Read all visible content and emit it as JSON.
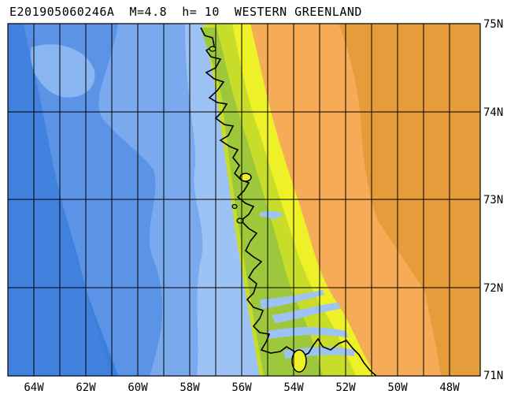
{
  "map": {
    "title": "E201905060246A  M=4.8  h= 10  WESTERN GREENLAND",
    "lon_labels": [
      "64W",
      "62W",
      "60W",
      "58W",
      "56W",
      "54W",
      "52W",
      "50W",
      "48W"
    ],
    "lat_labels": [
      "75N",
      "74N",
      "73N",
      "72N",
      "71N"
    ],
    "extent": {
      "lon_min": -65.3,
      "lon_max": -47.2,
      "lat_min": 71,
      "lat_max": 75
    },
    "colors": {
      "deep_ocean": "#3a7fdc",
      "ocean": "#5b93e6",
      "shelf_mid": "#7aa9ee",
      "shelf_shallow": "#9cc3f3",
      "lowland": "#9ec83c",
      "low_hills": "#c8dc2a",
      "highland": "#eef028",
      "ice_low": "#f6ac56",
      "ice_high": "#e59c3a",
      "coastline": "#000000",
      "grid": "#000000"
    }
  }
}
